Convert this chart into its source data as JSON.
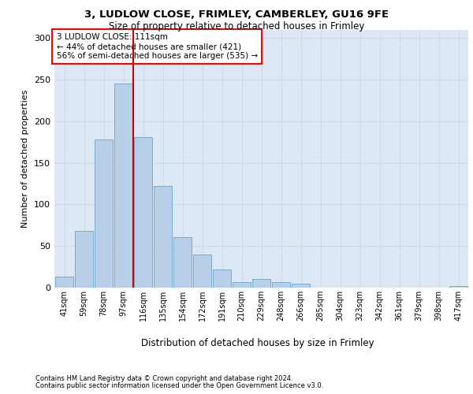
{
  "title1": "3, LUDLOW CLOSE, FRIMLEY, CAMBERLEY, GU16 9FE",
  "title2": "Size of property relative to detached houses in Frimley",
  "xlabel": "Distribution of detached houses by size in Frimley",
  "ylabel": "Number of detached properties",
  "footer1": "Contains HM Land Registry data © Crown copyright and database right 2024.",
  "footer2": "Contains public sector information licensed under the Open Government Licence v3.0.",
  "bin_labels": [
    "41sqm",
    "59sqm",
    "78sqm",
    "97sqm",
    "116sqm",
    "135sqm",
    "154sqm",
    "172sqm",
    "191sqm",
    "210sqm",
    "229sqm",
    "248sqm",
    "266sqm",
    "285sqm",
    "304sqm",
    "323sqm",
    "342sqm",
    "361sqm",
    "379sqm",
    "398sqm",
    "417sqm"
  ],
  "bar_values": [
    13,
    68,
    178,
    245,
    181,
    122,
    61,
    40,
    22,
    7,
    10,
    7,
    5,
    0,
    0,
    0,
    0,
    0,
    0,
    0,
    2
  ],
  "bar_color": "#b8cfe8",
  "bar_edgecolor": "#7aaad0",
  "grid_color": "#d0d8e4",
  "background_color": "#dce8f5",
  "annotation_line1": "3 LUDLOW CLOSE: 111sqm",
  "annotation_line2": "← 44% of detached houses are smaller (421)",
  "annotation_line3": "56% of semi-detached houses are larger (535) →",
  "vline_x_idx": 3.5,
  "vline_color": "#cc0000",
  "ylim": [
    0,
    310
  ],
  "yticks": [
    0,
    50,
    100,
    150,
    200,
    250,
    300
  ],
  "title1_fontsize": 9.5,
  "title2_fontsize": 8.5
}
